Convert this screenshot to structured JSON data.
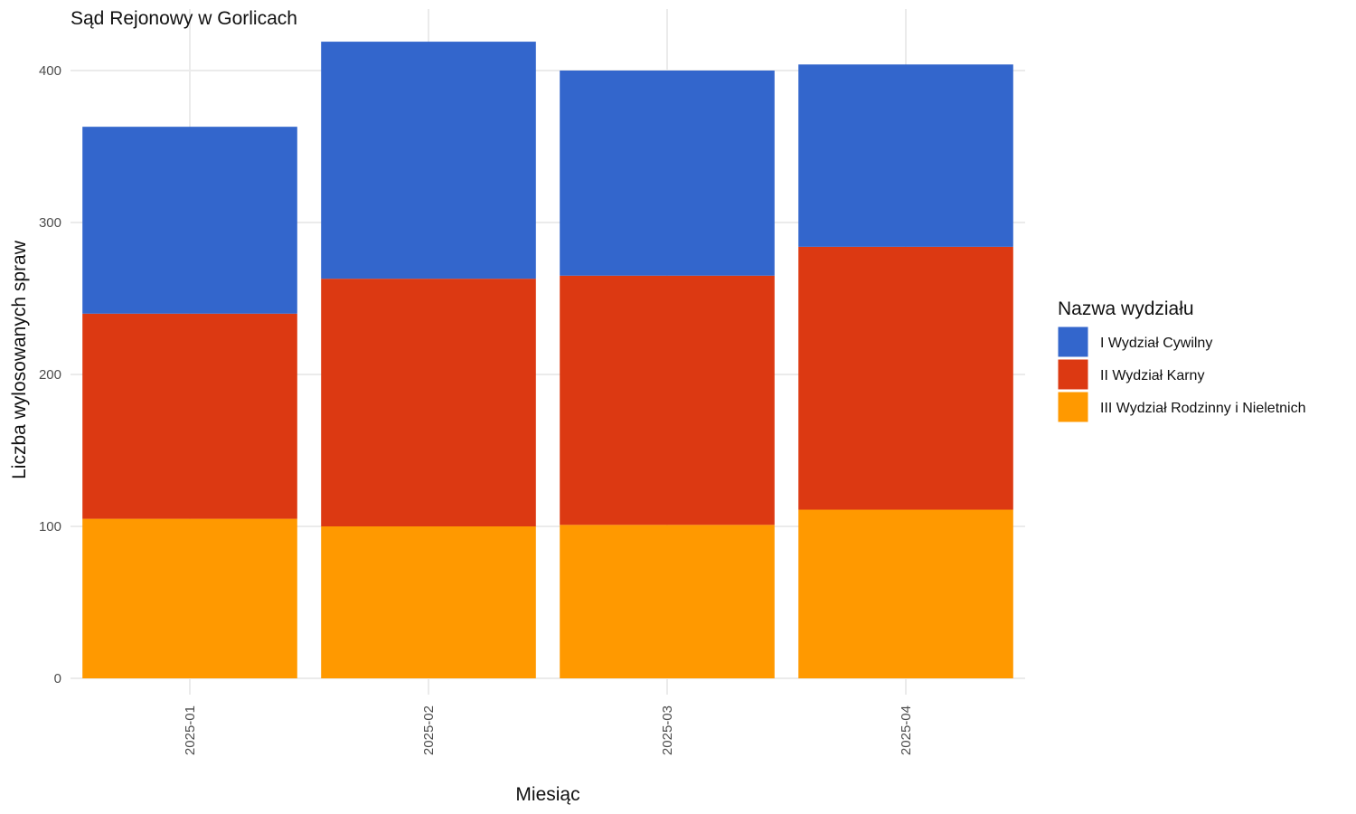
{
  "chart_data": {
    "type": "bar",
    "stacked": true,
    "title": "Sąd Rejonowy w Gorlicach",
    "xlabel": "Miesiąc",
    "ylabel": "Liczba wylosowanych spraw",
    "categories": [
      "2025-01",
      "2025-02",
      "2025-03",
      "2025-04"
    ],
    "yticks": [
      0,
      100,
      200,
      300,
      400
    ],
    "ylim": [
      0,
      420
    ],
    "grid": true,
    "legend": {
      "title": "Nazwa wydziału",
      "position": "right"
    },
    "series": [
      {
        "name": "III Wydział Rodzinny i Nieletnich",
        "color": "#ff9900",
        "values": [
          105,
          100,
          101,
          111
        ]
      },
      {
        "name": "II Wydział Karny",
        "color": "#dc3912",
        "values": [
          135,
          163,
          164,
          173
        ]
      },
      {
        "name": "I Wydział Cywilny",
        "color": "#3366cc",
        "values": [
          123,
          156,
          135,
          120
        ]
      }
    ],
    "legend_order": [
      "I Wydział Cywilny",
      "II Wydział Karny",
      "III Wydział Rodzinny i Nieletnich"
    ]
  }
}
